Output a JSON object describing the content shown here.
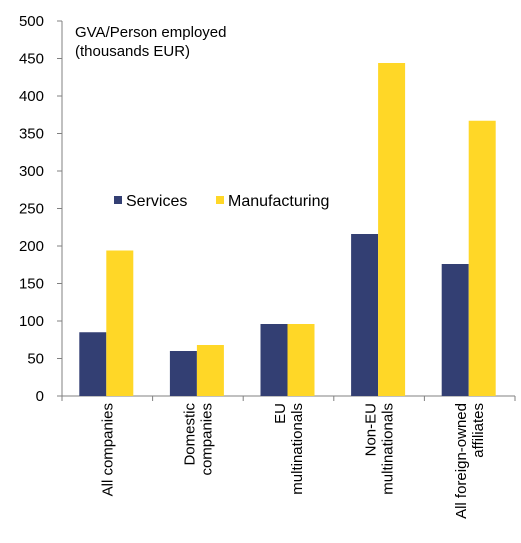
{
  "chart_data": {
    "type": "bar",
    "ylabel": [
      "GVA/Person employed",
      "(thousands EUR)"
    ],
    "ylim": [
      0,
      500
    ],
    "yticks": [
      "0",
      "50",
      "100",
      "150",
      "200",
      "250",
      "300",
      "350",
      "400",
      "450",
      "500"
    ],
    "categories": [
      [
        "All companies"
      ],
      [
        "Domestic",
        "companies"
      ],
      [
        "EU",
        "multinationals"
      ],
      [
        "Non-EU",
        "multinationals"
      ],
      [
        "All foreign-owned",
        "affiliates"
      ]
    ],
    "series": [
      {
        "name": "Services",
        "color": "#333F73",
        "values": [
          85,
          60,
          96,
          216,
          176
        ]
      },
      {
        "name": "Manufacturing",
        "color": "#FFD727",
        "values": [
          194,
          68,
          96,
          444,
          367
        ]
      }
    ],
    "legend_placement": "center-left",
    "grid": false
  }
}
